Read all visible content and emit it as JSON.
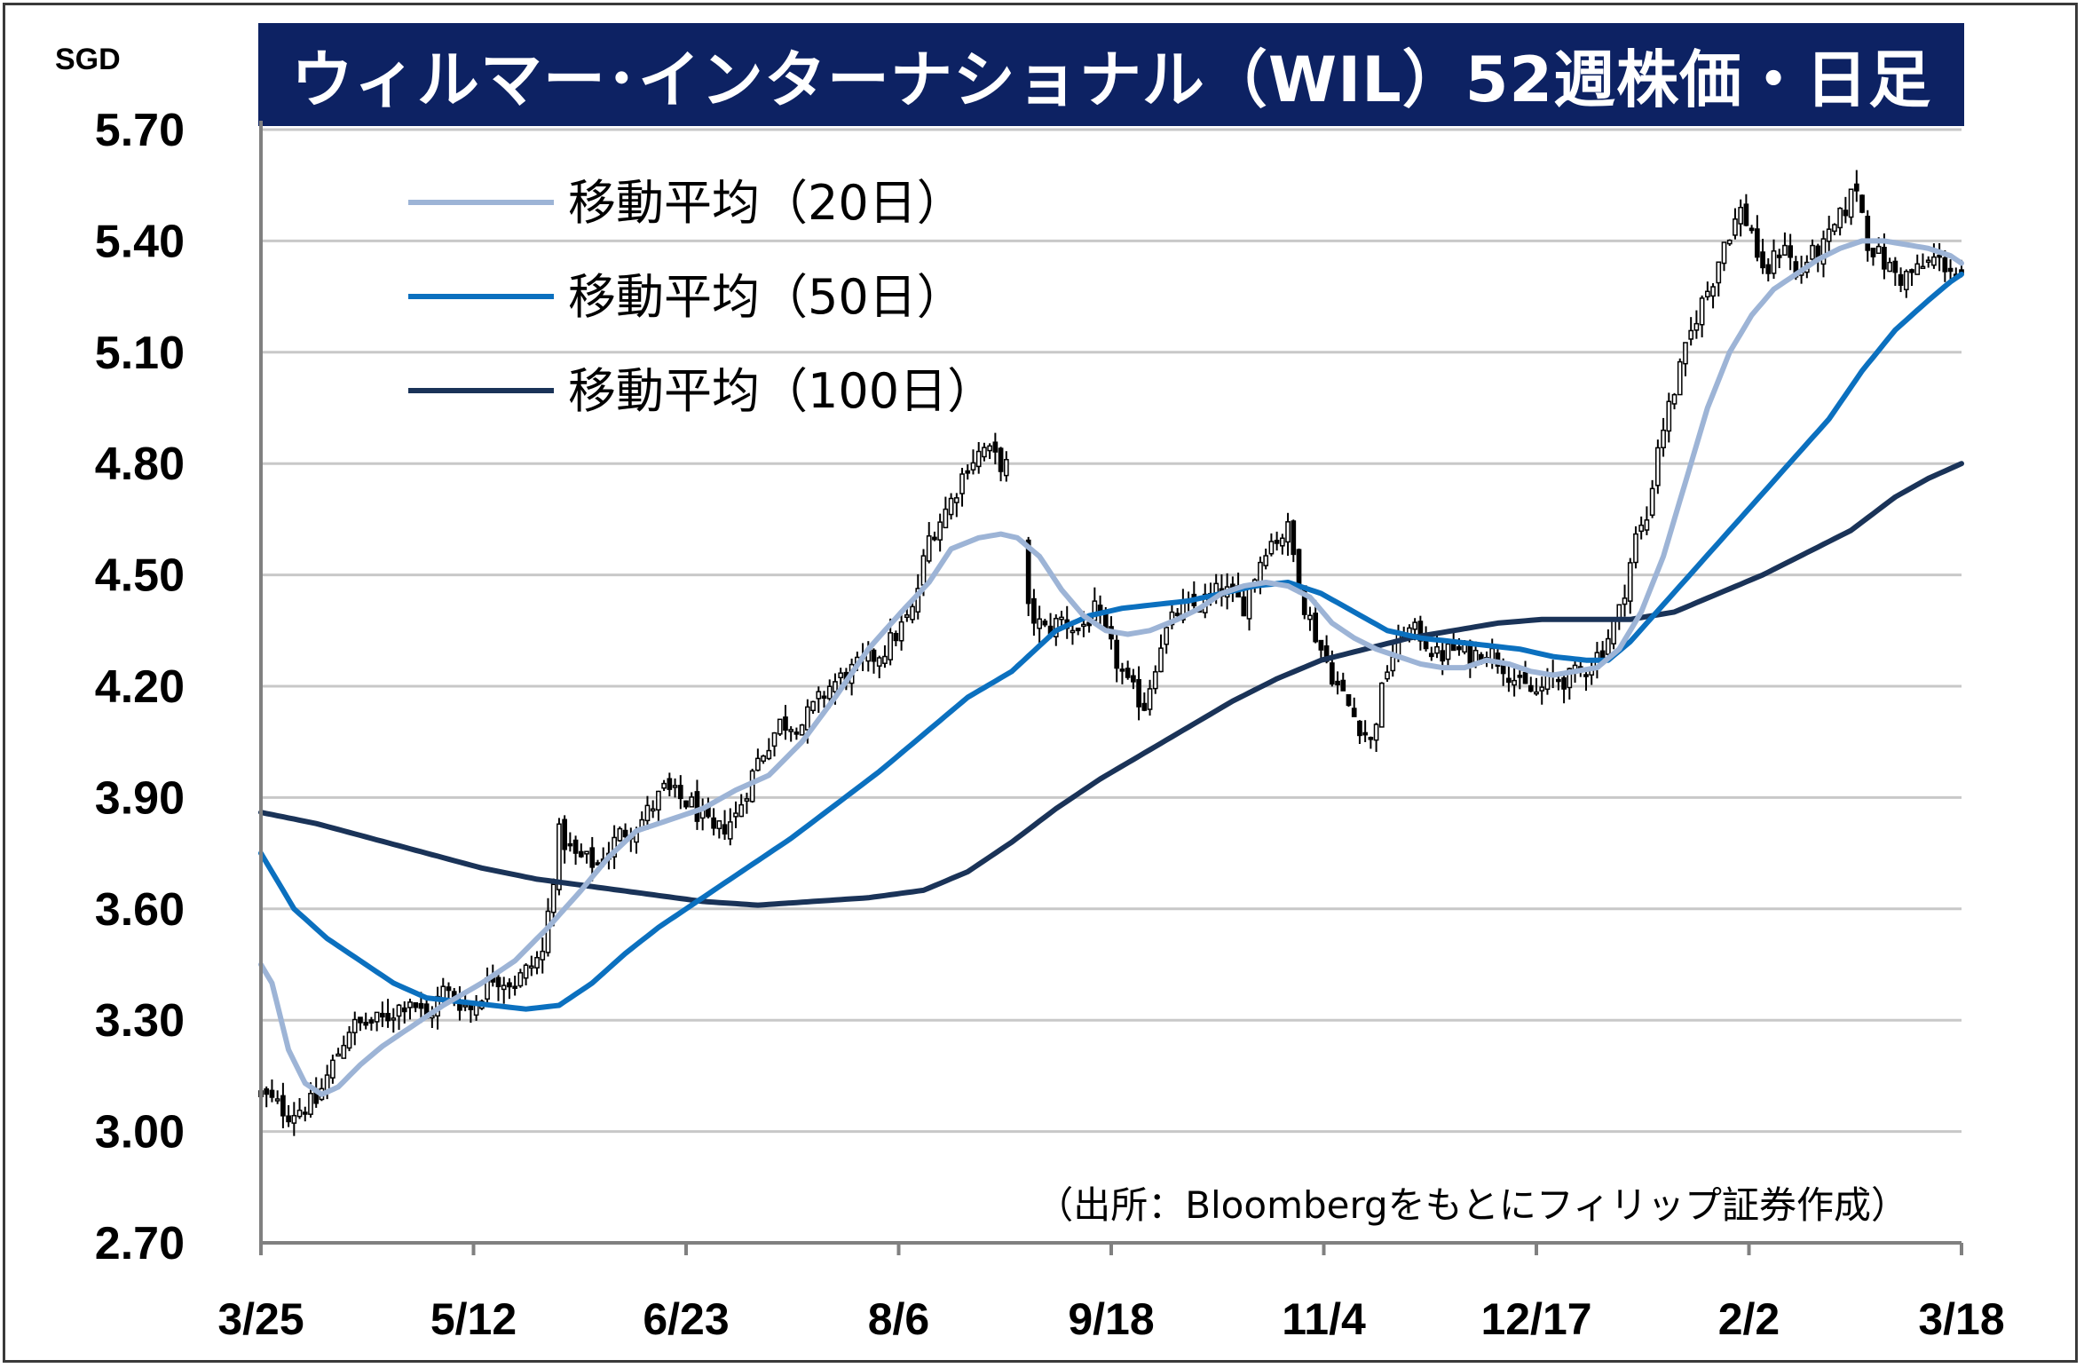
{
  "header": {
    "title": "ウィルマー･インターナショナル（WIL）52週株価・日足",
    "unit": "SGD"
  },
  "source_note": "（出所：Bloombergをもとにフィリップ証券作成）",
  "colors": {
    "title_background": "#0d2263",
    "ma20": "#9db4d6",
    "ma50": "#0b70bf",
    "ma100": "#1a3358",
    "candle": "#000000",
    "grid": "#c8c8c8"
  },
  "chart_data": {
    "type": "candlestick",
    "ylim": [
      2.7,
      5.7
    ],
    "yticks": [
      "5.70",
      "5.40",
      "5.10",
      "4.80",
      "4.50",
      "4.20",
      "3.90",
      "3.60",
      "3.30",
      "3.00",
      "2.70"
    ],
    "xticks": [
      "3/25",
      "5/12",
      "6/23",
      "8/6",
      "9/18",
      "11/4",
      "12/17",
      "2/2",
      "3/18"
    ],
    "grid": "horizontal",
    "legend_position": "top-left",
    "legend": [
      {
        "label": "移動平均（20日）",
        "color": "#9db4d6"
      },
      {
        "label": "移動平均（50日）",
        "color": "#0b70bf"
      },
      {
        "label": "移動平均（100日）",
        "color": "#1a3358"
      }
    ],
    "close_anchors": [
      [
        0,
        3.1
      ],
      [
        5,
        3.05
      ],
      [
        10,
        3.08
      ],
      [
        16,
        3.28
      ],
      [
        22,
        3.3
      ],
      [
        27,
        3.36
      ],
      [
        30,
        3.3
      ],
      [
        33,
        3.38
      ],
      [
        38,
        3.33
      ],
      [
        42,
        3.42
      ],
      [
        46,
        3.4
      ],
      [
        51,
        3.48
      ],
      [
        54,
        3.8
      ],
      [
        57,
        3.74
      ],
      [
        61,
        3.72
      ],
      [
        65,
        3.8
      ],
      [
        69,
        3.84
      ],
      [
        73,
        3.92
      ],
      [
        78,
        3.88
      ],
      [
        82,
        3.8
      ],
      [
        86,
        3.85
      ],
      [
        90,
        4.0
      ],
      [
        94,
        4.1
      ],
      [
        98,
        4.1
      ],
      [
        103,
        4.2
      ],
      [
        108,
        4.25
      ],
      [
        113,
        4.3
      ],
      [
        118,
        4.4
      ],
      [
        121,
        4.6
      ],
      [
        125,
        4.7
      ],
      [
        128,
        4.8
      ],
      [
        131,
        4.84
      ],
      [
        134,
        4.8
      ],
      [
        137,
        4.78
      ],
      [
        139,
        4.4
      ],
      [
        142,
        4.35
      ],
      [
        145,
        4.38
      ],
      [
        148,
        4.35
      ],
      [
        151,
        4.4
      ],
      [
        154,
        4.3
      ],
      [
        157,
        4.2
      ],
      [
        160,
        4.15
      ],
      [
        163,
        4.32
      ],
      [
        166,
        4.4
      ],
      [
        170,
        4.42
      ],
      [
        174,
        4.46
      ],
      [
        178,
        4.42
      ],
      [
        182,
        4.58
      ],
      [
        186,
        4.62
      ],
      [
        189,
        4.42
      ],
      [
        192,
        4.3
      ],
      [
        195,
        4.2
      ],
      [
        198,
        4.12
      ],
      [
        201,
        4.05
      ],
      [
        204,
        4.25
      ],
      [
        207,
        4.35
      ],
      [
        210,
        4.34
      ],
      [
        213,
        4.28
      ],
      [
        216,
        4.3
      ],
      [
        219,
        4.28
      ],
      [
        222,
        4.3
      ],
      [
        225,
        4.26
      ],
      [
        228,
        4.2
      ],
      [
        231,
        4.18
      ],
      [
        234,
        4.22
      ],
      [
        237,
        4.22
      ],
      [
        240,
        4.25
      ],
      [
        243,
        4.3
      ],
      [
        246,
        4.4
      ],
      [
        249,
        4.6
      ],
      [
        251,
        4.65
      ],
      [
        253,
        4.85
      ],
      [
        255,
        4.95
      ],
      [
        257,
        5.05
      ],
      [
        260,
        5.2
      ],
      [
        263,
        5.3
      ],
      [
        265,
        5.4
      ],
      [
        268,
        5.48
      ],
      [
        270,
        5.43
      ],
      [
        272,
        5.3
      ],
      [
        274,
        5.35
      ],
      [
        276,
        5.4
      ],
      [
        278,
        5.3
      ],
      [
        280,
        5.35
      ],
      [
        283,
        5.38
      ],
      [
        286,
        5.46
      ],
      [
        289,
        5.55
      ],
      [
        291,
        5.4
      ],
      [
        294,
        5.34
      ],
      [
        297,
        5.3
      ],
      [
        300,
        5.32
      ],
      [
        303,
        5.35
      ],
      [
        306,
        5.33
      ],
      [
        308,
        5.29
      ]
    ],
    "ma20_anchors": [
      [
        0,
        3.45
      ],
      [
        2,
        3.4
      ],
      [
        5,
        3.22
      ],
      [
        8,
        3.13
      ],
      [
        11,
        3.1
      ],
      [
        14,
        3.12
      ],
      [
        18,
        3.18
      ],
      [
        22,
        3.23
      ],
      [
        27,
        3.28
      ],
      [
        33,
        3.34
      ],
      [
        40,
        3.4
      ],
      [
        46,
        3.46
      ],
      [
        52,
        3.55
      ],
      [
        58,
        3.65
      ],
      [
        63,
        3.74
      ],
      [
        68,
        3.81
      ],
      [
        74,
        3.84
      ],
      [
        80,
        3.87
      ],
      [
        86,
        3.92
      ],
      [
        92,
        3.96
      ],
      [
        98,
        4.05
      ],
      [
        104,
        4.17
      ],
      [
        110,
        4.3
      ],
      [
        116,
        4.4
      ],
      [
        121,
        4.48
      ],
      [
        125,
        4.57
      ],
      [
        130,
        4.6
      ],
      [
        134,
        4.61
      ],
      [
        137,
        4.6
      ],
      [
        141,
        4.55
      ],
      [
        145,
        4.46
      ],
      [
        149,
        4.39
      ],
      [
        153,
        4.35
      ],
      [
        157,
        4.34
      ],
      [
        161,
        4.35
      ],
      [
        166,
        4.38
      ],
      [
        170,
        4.41
      ],
      [
        174,
        4.45
      ],
      [
        178,
        4.47
      ],
      [
        182,
        4.48
      ],
      [
        186,
        4.47
      ],
      [
        190,
        4.44
      ],
      [
        194,
        4.37
      ],
      [
        198,
        4.33
      ],
      [
        202,
        4.3
      ],
      [
        206,
        4.28
      ],
      [
        210,
        4.26
      ],
      [
        214,
        4.25
      ],
      [
        218,
        4.25
      ],
      [
        222,
        4.27
      ],
      [
        226,
        4.26
      ],
      [
        230,
        4.24
      ],
      [
        234,
        4.23
      ],
      [
        238,
        4.24
      ],
      [
        242,
        4.25
      ],
      [
        246,
        4.3
      ],
      [
        250,
        4.4
      ],
      [
        254,
        4.55
      ],
      [
        258,
        4.75
      ],
      [
        262,
        4.95
      ],
      [
        266,
        5.1
      ],
      [
        270,
        5.2
      ],
      [
        274,
        5.27
      ],
      [
        278,
        5.31
      ],
      [
        282,
        5.35
      ],
      [
        286,
        5.38
      ],
      [
        290,
        5.4
      ],
      [
        294,
        5.4
      ],
      [
        298,
        5.39
      ],
      [
        302,
        5.38
      ],
      [
        306,
        5.36
      ],
      [
        308,
        5.34
      ]
    ],
    "ma50_anchors": [
      [
        0,
        3.75
      ],
      [
        6,
        3.6
      ],
      [
        12,
        3.52
      ],
      [
        18,
        3.46
      ],
      [
        24,
        3.4
      ],
      [
        30,
        3.36
      ],
      [
        36,
        3.35
      ],
      [
        42,
        3.34
      ],
      [
        48,
        3.33
      ],
      [
        54,
        3.34
      ],
      [
        60,
        3.4
      ],
      [
        66,
        3.48
      ],
      [
        72,
        3.55
      ],
      [
        80,
        3.63
      ],
      [
        88,
        3.71
      ],
      [
        96,
        3.79
      ],
      [
        104,
        3.88
      ],
      [
        112,
        3.97
      ],
      [
        120,
        4.07
      ],
      [
        128,
        4.17
      ],
      [
        136,
        4.24
      ],
      [
        144,
        4.35
      ],
      [
        150,
        4.39
      ],
      [
        156,
        4.41
      ],
      [
        162,
        4.42
      ],
      [
        168,
        4.43
      ],
      [
        174,
        4.45
      ],
      [
        180,
        4.47
      ],
      [
        186,
        4.48
      ],
      [
        192,
        4.45
      ],
      [
        198,
        4.4
      ],
      [
        204,
        4.35
      ],
      [
        210,
        4.33
      ],
      [
        216,
        4.32
      ],
      [
        222,
        4.31
      ],
      [
        228,
        4.3
      ],
      [
        234,
        4.28
      ],
      [
        240,
        4.27
      ],
      [
        244,
        4.27
      ],
      [
        248,
        4.32
      ],
      [
        254,
        4.42
      ],
      [
        260,
        4.52
      ],
      [
        266,
        4.62
      ],
      [
        272,
        4.72
      ],
      [
        278,
        4.82
      ],
      [
        284,
        4.92
      ],
      [
        290,
        5.05
      ],
      [
        296,
        5.16
      ],
      [
        302,
        5.24
      ],
      [
        306,
        5.29
      ],
      [
        308,
        5.31
      ]
    ],
    "ma100_anchors": [
      [
        0,
        3.86
      ],
      [
        10,
        3.83
      ],
      [
        20,
        3.79
      ],
      [
        30,
        3.75
      ],
      [
        40,
        3.71
      ],
      [
        50,
        3.68
      ],
      [
        60,
        3.66
      ],
      [
        70,
        3.64
      ],
      [
        80,
        3.62
      ],
      [
        90,
        3.61
      ],
      [
        100,
        3.62
      ],
      [
        110,
        3.63
      ],
      [
        120,
        3.65
      ],
      [
        128,
        3.7
      ],
      [
        136,
        3.78
      ],
      [
        144,
        3.87
      ],
      [
        152,
        3.95
      ],
      [
        160,
        4.02
      ],
      [
        168,
        4.09
      ],
      [
        176,
        4.16
      ],
      [
        184,
        4.22
      ],
      [
        192,
        4.27
      ],
      [
        200,
        4.3
      ],
      [
        208,
        4.33
      ],
      [
        216,
        4.35
      ],
      [
        224,
        4.37
      ],
      [
        232,
        4.38
      ],
      [
        240,
        4.38
      ],
      [
        248,
        4.38
      ],
      [
        256,
        4.4
      ],
      [
        264,
        4.45
      ],
      [
        272,
        4.5
      ],
      [
        280,
        4.56
      ],
      [
        288,
        4.62
      ],
      [
        296,
        4.71
      ],
      [
        302,
        4.76
      ],
      [
        308,
        4.8
      ]
    ]
  }
}
